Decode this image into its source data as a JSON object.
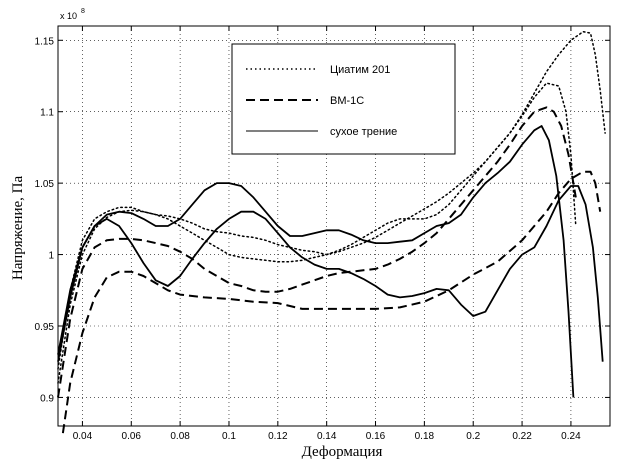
{
  "chart_data": {
    "type": "line",
    "title": "",
    "xlabel": "Деформация",
    "ylabel": "Напряжение, Па",
    "y_multiplier": "x 10",
    "y_multiplier_exp": "8",
    "xlim": [
      0.03,
      0.256
    ],
    "ylim": [
      0.88,
      1.16
    ],
    "x_ticks": [
      0.04,
      0.06,
      0.08,
      0.1,
      0.12,
      0.14,
      0.16,
      0.18,
      0.2,
      0.22,
      0.24
    ],
    "x_tick_labels": [
      "0.04",
      "0.06",
      "0.08",
      "0.1",
      "0.12",
      "0.14",
      "0.16",
      "0.18",
      "0.2",
      "0.22",
      "0.24"
    ],
    "y_ticks": [
      0.9,
      0.95,
      1.0,
      1.05,
      1.1,
      1.15
    ],
    "y_tick_labels": [
      "0.9",
      "0.95",
      "1",
      "1.05",
      "1.1",
      "1.15"
    ],
    "grid": true,
    "legend_position": "top-center",
    "legend": [
      {
        "label": "Циатим 201",
        "style": "dotted"
      },
      {
        "label": "ВМ-1С",
        "style": "dashed"
      },
      {
        "label": "сухое трение",
        "style": "solid"
      }
    ],
    "series": [
      {
        "name": "Циатим 201",
        "style": "dotted",
        "points": [
          [
            0.03,
            0.92
          ],
          [
            0.035,
            0.975
          ],
          [
            0.04,
            1.01
          ],
          [
            0.045,
            1.025
          ],
          [
            0.05,
            1.03
          ],
          [
            0.055,
            1.033
          ],
          [
            0.06,
            1.033
          ],
          [
            0.065,
            1.03
          ],
          [
            0.07,
            1.028
          ],
          [
            0.075,
            1.027
          ],
          [
            0.08,
            1.025
          ],
          [
            0.085,
            1.022
          ],
          [
            0.09,
            1.018
          ],
          [
            0.095,
            1.016
          ],
          [
            0.1,
            1.015
          ],
          [
            0.105,
            1.013
          ],
          [
            0.11,
            1.012
          ],
          [
            0.115,
            1.01
          ],
          [
            0.12,
            1.007
          ],
          [
            0.125,
            1.005
          ],
          [
            0.13,
            1.003
          ],
          [
            0.135,
            1.002
          ],
          [
            0.14,
            1.0
          ],
          [
            0.145,
            1.002
          ],
          [
            0.15,
            1.005
          ],
          [
            0.155,
            1.008
          ],
          [
            0.16,
            1.012
          ],
          [
            0.165,
            1.017
          ],
          [
            0.17,
            1.022
          ],
          [
            0.175,
            1.027
          ],
          [
            0.18,
            1.032
          ],
          [
            0.185,
            1.037
          ],
          [
            0.19,
            1.043
          ],
          [
            0.195,
            1.05
          ],
          [
            0.2,
            1.057
          ],
          [
            0.205,
            1.065
          ],
          [
            0.21,
            1.075
          ],
          [
            0.215,
            1.085
          ],
          [
            0.22,
            1.098
          ],
          [
            0.225,
            1.113
          ],
          [
            0.23,
            1.128
          ],
          [
            0.235,
            1.14
          ],
          [
            0.24,
            1.15
          ],
          [
            0.245,
            1.156
          ],
          [
            0.248,
            1.155
          ],
          [
            0.25,
            1.14
          ],
          [
            0.252,
            1.115
          ],
          [
            0.254,
            1.085
          ]
        ]
      },
      {
        "name": "Циатим 201",
        "style": "dotted",
        "points": [
          [
            0.03,
            0.91
          ],
          [
            0.035,
            0.965
          ],
          [
            0.04,
            1.0
          ],
          [
            0.045,
            1.018
          ],
          [
            0.05,
            1.026
          ],
          [
            0.055,
            1.03
          ],
          [
            0.06,
            1.031
          ],
          [
            0.065,
            1.03
          ],
          [
            0.07,
            1.028
          ],
          [
            0.075,
            1.025
          ],
          [
            0.08,
            1.02
          ],
          [
            0.085,
            1.015
          ],
          [
            0.09,
            1.01
          ],
          [
            0.095,
            1.005
          ],
          [
            0.1,
            1.0
          ],
          [
            0.105,
            0.998
          ],
          [
            0.11,
            0.997
          ],
          [
            0.115,
            0.996
          ],
          [
            0.12,
            0.995
          ],
          [
            0.125,
            0.995
          ],
          [
            0.13,
            0.996
          ],
          [
            0.135,
            0.998
          ],
          [
            0.14,
            1.0
          ],
          [
            0.145,
            1.003
          ],
          [
            0.15,
            1.007
          ],
          [
            0.155,
            1.012
          ],
          [
            0.16,
            1.017
          ],
          [
            0.165,
            1.022
          ],
          [
            0.17,
            1.025
          ],
          [
            0.175,
            1.025
          ],
          [
            0.18,
            1.025
          ],
          [
            0.185,
            1.028
          ],
          [
            0.19,
            1.035
          ],
          [
            0.195,
            1.045
          ],
          [
            0.2,
            1.055
          ],
          [
            0.205,
            1.065
          ],
          [
            0.21,
            1.075
          ],
          [
            0.215,
            1.085
          ],
          [
            0.22,
            1.097
          ],
          [
            0.225,
            1.11
          ],
          [
            0.23,
            1.12
          ],
          [
            0.235,
            1.118
          ],
          [
            0.238,
            1.1
          ],
          [
            0.24,
            1.07
          ],
          [
            0.242,
            1.02
          ]
        ]
      },
      {
        "name": "ВМ-1С",
        "style": "dashed",
        "points": [
          [
            0.032,
            0.875
          ],
          [
            0.035,
            0.91
          ],
          [
            0.04,
            0.945
          ],
          [
            0.045,
            0.97
          ],
          [
            0.05,
            0.984
          ],
          [
            0.055,
            0.988
          ],
          [
            0.06,
            0.988
          ],
          [
            0.065,
            0.985
          ],
          [
            0.07,
            0.98
          ],
          [
            0.075,
            0.975
          ],
          [
            0.08,
            0.972
          ],
          [
            0.09,
            0.97
          ],
          [
            0.1,
            0.969
          ],
          [
            0.11,
            0.967
          ],
          [
            0.12,
            0.966
          ],
          [
            0.13,
            0.962
          ],
          [
            0.14,
            0.962
          ],
          [
            0.15,
            0.962
          ],
          [
            0.16,
            0.962
          ],
          [
            0.17,
            0.963
          ],
          [
            0.18,
            0.967
          ],
          [
            0.19,
            0.975
          ],
          [
            0.2,
            0.986
          ],
          [
            0.21,
            0.995
          ],
          [
            0.22,
            1.01
          ],
          [
            0.23,
            1.03
          ],
          [
            0.235,
            1.043
          ],
          [
            0.24,
            1.053
          ],
          [
            0.245,
            1.058
          ],
          [
            0.248,
            1.058
          ],
          [
            0.25,
            1.05
          ],
          [
            0.252,
            1.03
          ]
        ]
      },
      {
        "name": "ВМ-1С",
        "style": "dashed",
        "points": [
          [
            0.03,
            0.9
          ],
          [
            0.035,
            0.955
          ],
          [
            0.04,
            0.99
          ],
          [
            0.045,
            1.005
          ],
          [
            0.05,
            1.01
          ],
          [
            0.055,
            1.011
          ],
          [
            0.06,
            1.011
          ],
          [
            0.065,
            1.01
          ],
          [
            0.07,
            1.008
          ],
          [
            0.075,
            1.006
          ],
          [
            0.08,
            1.002
          ],
          [
            0.085,
            0.997
          ],
          [
            0.09,
            0.99
          ],
          [
            0.095,
            0.985
          ],
          [
            0.1,
            0.98
          ],
          [
            0.105,
            0.978
          ],
          [
            0.11,
            0.975
          ],
          [
            0.115,
            0.974
          ],
          [
            0.12,
            0.974
          ],
          [
            0.125,
            0.976
          ],
          [
            0.13,
            0.979
          ],
          [
            0.135,
            0.982
          ],
          [
            0.14,
            0.985
          ],
          [
            0.145,
            0.987
          ],
          [
            0.15,
            0.988
          ],
          [
            0.155,
            0.989
          ],
          [
            0.16,
            0.99
          ],
          [
            0.165,
            0.993
          ],
          [
            0.17,
            0.997
          ],
          [
            0.175,
            1.002
          ],
          [
            0.18,
            1.008
          ],
          [
            0.185,
            1.015
          ],
          [
            0.19,
            1.025
          ],
          [
            0.195,
            1.035
          ],
          [
            0.2,
            1.045
          ],
          [
            0.205,
            1.055
          ],
          [
            0.21,
            1.065
          ],
          [
            0.215,
            1.077
          ],
          [
            0.22,
            1.09
          ],
          [
            0.225,
            1.1
          ],
          [
            0.23,
            1.103
          ],
          [
            0.233,
            1.1
          ],
          [
            0.236,
            1.09
          ],
          [
            0.239,
            1.07
          ],
          [
            0.242,
            1.04
          ]
        ]
      },
      {
        "name": "сухое трение",
        "style": "solid",
        "points": [
          [
            0.03,
            0.93
          ],
          [
            0.035,
            0.975
          ],
          [
            0.04,
            1.005
          ],
          [
            0.045,
            1.02
          ],
          [
            0.05,
            1.028
          ],
          [
            0.055,
            1.03
          ],
          [
            0.06,
            1.029
          ],
          [
            0.065,
            1.025
          ],
          [
            0.07,
            1.02
          ],
          [
            0.075,
            1.02
          ],
          [
            0.08,
            1.025
          ],
          [
            0.085,
            1.035
          ],
          [
            0.09,
            1.045
          ],
          [
            0.095,
            1.05
          ],
          [
            0.1,
            1.05
          ],
          [
            0.105,
            1.048
          ],
          [
            0.11,
            1.04
          ],
          [
            0.115,
            1.03
          ],
          [
            0.12,
            1.02
          ],
          [
            0.125,
            1.013
          ],
          [
            0.13,
            1.013
          ],
          [
            0.135,
            1.015
          ],
          [
            0.14,
            1.017
          ],
          [
            0.145,
            1.017
          ],
          [
            0.15,
            1.014
          ],
          [
            0.155,
            1.01
          ],
          [
            0.16,
            1.008
          ],
          [
            0.165,
            1.008
          ],
          [
            0.17,
            1.009
          ],
          [
            0.175,
            1.01
          ],
          [
            0.18,
            1.015
          ],
          [
            0.185,
            1.02
          ],
          [
            0.19,
            1.022
          ],
          [
            0.195,
            1.028
          ],
          [
            0.2,
            1.04
          ],
          [
            0.205,
            1.05
          ],
          [
            0.21,
            1.057
          ],
          [
            0.215,
            1.065
          ],
          [
            0.22,
            1.077
          ],
          [
            0.225,
            1.087
          ],
          [
            0.228,
            1.09
          ],
          [
            0.231,
            1.08
          ],
          [
            0.234,
            1.055
          ],
          [
            0.237,
            1.01
          ],
          [
            0.239,
            0.96
          ],
          [
            0.241,
            0.9
          ]
        ]
      },
      {
        "name": "сухое трение",
        "style": "solid",
        "points": [
          [
            0.03,
            0.925
          ],
          [
            0.035,
            0.97
          ],
          [
            0.04,
            1.005
          ],
          [
            0.045,
            1.02
          ],
          [
            0.05,
            1.025
          ],
          [
            0.055,
            1.02
          ],
          [
            0.06,
            1.008
          ],
          [
            0.065,
            0.994
          ],
          [
            0.07,
            0.982
          ],
          [
            0.075,
            0.978
          ],
          [
            0.08,
            0.985
          ],
          [
            0.085,
            0.997
          ],
          [
            0.09,
            1.008
          ],
          [
            0.095,
            1.018
          ],
          [
            0.1,
            1.025
          ],
          [
            0.105,
            1.03
          ],
          [
            0.11,
            1.03
          ],
          [
            0.115,
            1.025
          ],
          [
            0.12,
            1.015
          ],
          [
            0.125,
            1.005
          ],
          [
            0.13,
            0.998
          ],
          [
            0.135,
            0.993
          ],
          [
            0.14,
            0.99
          ],
          [
            0.145,
            0.99
          ],
          [
            0.15,
            0.987
          ],
          [
            0.155,
            0.983
          ],
          [
            0.16,
            0.978
          ],
          [
            0.165,
            0.972
          ],
          [
            0.17,
            0.97
          ],
          [
            0.175,
            0.971
          ],
          [
            0.18,
            0.973
          ],
          [
            0.185,
            0.976
          ],
          [
            0.19,
            0.975
          ],
          [
            0.195,
            0.965
          ],
          [
            0.2,
            0.957
          ],
          [
            0.205,
            0.96
          ],
          [
            0.21,
            0.975
          ],
          [
            0.215,
            0.99
          ],
          [
            0.22,
            1.0
          ],
          [
            0.225,
            1.005
          ],
          [
            0.23,
            1.02
          ],
          [
            0.235,
            1.038
          ],
          [
            0.24,
            1.048
          ],
          [
            0.243,
            1.048
          ],
          [
            0.246,
            1.035
          ],
          [
            0.249,
            1.005
          ],
          [
            0.251,
            0.97
          ],
          [
            0.253,
            0.925
          ]
        ]
      }
    ]
  }
}
